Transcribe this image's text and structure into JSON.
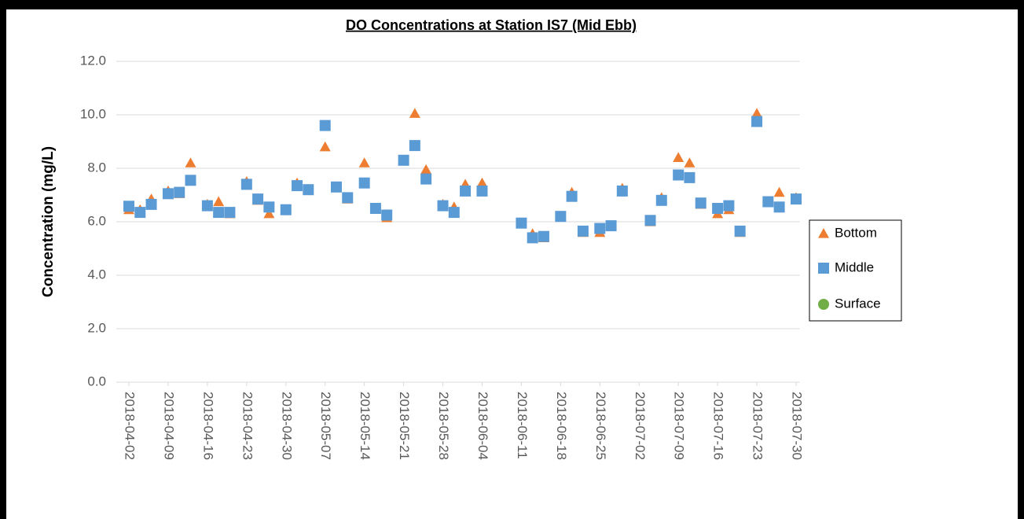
{
  "chart_data": {
    "type": "scatter",
    "title": "DO Concentrations at Station IS7 (Mid Ebb)",
    "y_label": "Concentration (mg/L)",
    "x": [
      "2018-04-02",
      "2018-04-04",
      "2018-04-06",
      "2018-04-09",
      "2018-04-11",
      "2018-04-13",
      "2018-04-16",
      "2018-04-18",
      "2018-04-20",
      "2018-04-23",
      "2018-04-25",
      "2018-04-27",
      "2018-04-30",
      "2018-05-02",
      "2018-05-04",
      "2018-05-07",
      "2018-05-09",
      "2018-05-11",
      "2018-05-14",
      "2018-05-16",
      "2018-05-18",
      "2018-05-21",
      "2018-05-23",
      "2018-05-25",
      "2018-05-28",
      "2018-05-30",
      "2018-06-01",
      "2018-06-04",
      "2018-06-11",
      "2018-06-13",
      "2018-06-15",
      "2018-06-18",
      "2018-06-20",
      "2018-06-22",
      "2018-06-25",
      "2018-06-27",
      "2018-06-29",
      "2018-07-04",
      "2018-07-06",
      "2018-07-09",
      "2018-07-11",
      "2018-07-13",
      "2018-07-16",
      "2018-07-18",
      "2018-07-20",
      "2018-07-23",
      "2018-07-25",
      "2018-07-27",
      "2018-07-30"
    ],
    "series": [
      {
        "name": "Bottom",
        "color": "#ed7d31",
        "marker": "triangle",
        "values": [
          6.45,
          6.45,
          6.85,
          7.15,
          7.05,
          8.2,
          6.65,
          6.75,
          6.3,
          7.5,
          6.8,
          6.3,
          6.45,
          7.45,
          7.2,
          8.8,
          7.3,
          6.85,
          8.2,
          6.5,
          6.15,
          8.3,
          10.05,
          7.95,
          6.65,
          6.55,
          7.4,
          7.45,
          5.95,
          5.55,
          5.4,
          6.2,
          7.1,
          5.6,
          5.6,
          5.85,
          7.25,
          6.0,
          6.9,
          8.4,
          8.2,
          6.65,
          6.3,
          6.45,
          5.6,
          10.05,
          6.75,
          7.1,
          6.9
        ]
      },
      {
        "name": "Middle",
        "color": "#5b9bd5",
        "marker": "square",
        "values": [
          6.58,
          6.35,
          6.65,
          7.05,
          7.1,
          7.55,
          6.6,
          6.35,
          6.35,
          7.4,
          6.85,
          6.55,
          6.45,
          7.35,
          7.2,
          9.6,
          7.3,
          6.9,
          7.45,
          6.5,
          6.25,
          8.3,
          8.85,
          7.6,
          6.6,
          6.35,
          7.15,
          7.15,
          5.95,
          5.4,
          5.45,
          6.2,
          6.95,
          5.65,
          5.75,
          5.85,
          7.15,
          6.05,
          6.8,
          7.75,
          7.65,
          6.7,
          6.5,
          6.6,
          5.65,
          9.75,
          6.75,
          6.55,
          6.85
        ]
      },
      {
        "name": "Surface",
        "color": "#70ad47",
        "marker": "circle",
        "values": [
          null,
          null,
          null,
          null,
          null,
          null,
          null,
          null,
          null,
          null,
          null,
          null,
          null,
          null,
          null,
          null,
          null,
          null,
          null,
          null,
          null,
          null,
          null,
          null,
          null,
          null,
          null,
          null,
          null,
          null,
          null,
          null,
          null,
          null,
          null,
          null,
          null,
          null,
          null,
          null,
          null,
          null,
          null,
          null,
          null,
          null,
          null,
          null,
          null
        ]
      }
    ],
    "xlim": [
      "2018-04-02",
      "2018-07-30"
    ],
    "xticks": [
      "2018-04-02",
      "2018-04-09",
      "2018-04-16",
      "2018-04-23",
      "2018-04-30",
      "2018-05-07",
      "2018-05-14",
      "2018-05-21",
      "2018-05-28",
      "2018-06-04",
      "2018-06-11",
      "2018-06-18",
      "2018-06-25",
      "2018-07-02",
      "2018-07-09",
      "2018-07-16",
      "2018-07-23",
      "2018-07-30"
    ],
    "ylim": [
      0,
      12
    ],
    "yticks": [
      {
        "value": 0,
        "label": "0.0"
      },
      {
        "value": 2,
        "label": "2.0"
      },
      {
        "value": 4,
        "label": "4.0"
      },
      {
        "value": 6,
        "label": "6.0"
      },
      {
        "value": 8,
        "label": "8.0"
      },
      {
        "value": 10,
        "label": "10.0"
      },
      {
        "value": 12,
        "label": "12.0"
      }
    ],
    "grid": true,
    "legend": "right"
  }
}
